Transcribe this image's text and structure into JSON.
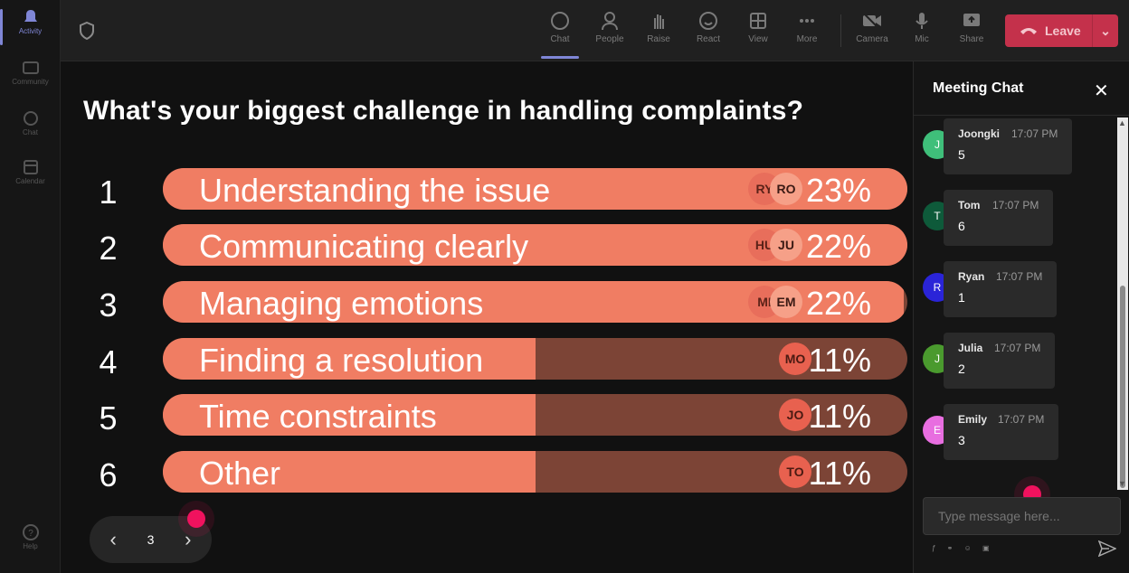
{
  "rail": {
    "items": [
      {
        "label": "Activity"
      },
      {
        "label": "Community"
      },
      {
        "label": "Chat"
      },
      {
        "label": "Calendar"
      }
    ],
    "help": "Help"
  },
  "toolbar": {
    "buttons": [
      {
        "label": "Chat"
      },
      {
        "label": "People"
      },
      {
        "label": "Raise"
      },
      {
        "label": "React"
      },
      {
        "label": "View"
      },
      {
        "label": "More"
      },
      {
        "label": "Camera"
      },
      {
        "label": "Mic"
      },
      {
        "label": "Share"
      }
    ],
    "leave_label": "Leave"
  },
  "poll": {
    "question": "What's your biggest challenge in handling complaints?",
    "options": [
      {
        "rank": "1",
        "label": "Understanding the issue",
        "percent": "23%",
        "fill": 1.0,
        "avatars": [
          "RY",
          "RO"
        ]
      },
      {
        "rank": "2",
        "label": "Communicating clearly",
        "percent": "22%",
        "fill": 1.0,
        "avatars": [
          "HU",
          "JU"
        ]
      },
      {
        "rank": "3",
        "label": "Managing emotions",
        "percent": "22%",
        "fill": 0.995,
        "avatars": [
          "MI",
          "EM"
        ]
      },
      {
        "rank": "4",
        "label": "Finding a resolution",
        "percent": "11%",
        "fill": 0.5,
        "avatars": [
          "MO"
        ]
      },
      {
        "rank": "5",
        "label": "Time constraints",
        "percent": "11%",
        "fill": 0.5,
        "avatars": [
          "JO"
        ]
      },
      {
        "rank": "6",
        "label": "Other",
        "percent": "11%",
        "fill": 0.5,
        "avatars": [
          "TO"
        ]
      }
    ],
    "page": "3",
    "colors": {
      "fill": "#f07d63",
      "track": "#7c4436"
    }
  },
  "chat": {
    "title": "Meeting Chat",
    "messages": [
      {
        "initial": "J",
        "name": "Joongki",
        "time": "17:07 PM",
        "text": "5",
        "color": "#3fbf7a"
      },
      {
        "initial": "T",
        "name": "Tom",
        "time": "17:07 PM",
        "text": "6",
        "color": "#0e5a3a"
      },
      {
        "initial": "R",
        "name": "Ryan",
        "time": "17:07 PM",
        "text": "1",
        "color": "#2a24d8"
      },
      {
        "initial": "J",
        "name": "Julia",
        "time": "17:07 PM",
        "text": "2",
        "color": "#4a9a2e"
      },
      {
        "initial": "E",
        "name": "Emily",
        "time": "17:07 PM",
        "text": "3",
        "color": "#e86ee0"
      }
    ],
    "placeholder": "Type message here..."
  }
}
